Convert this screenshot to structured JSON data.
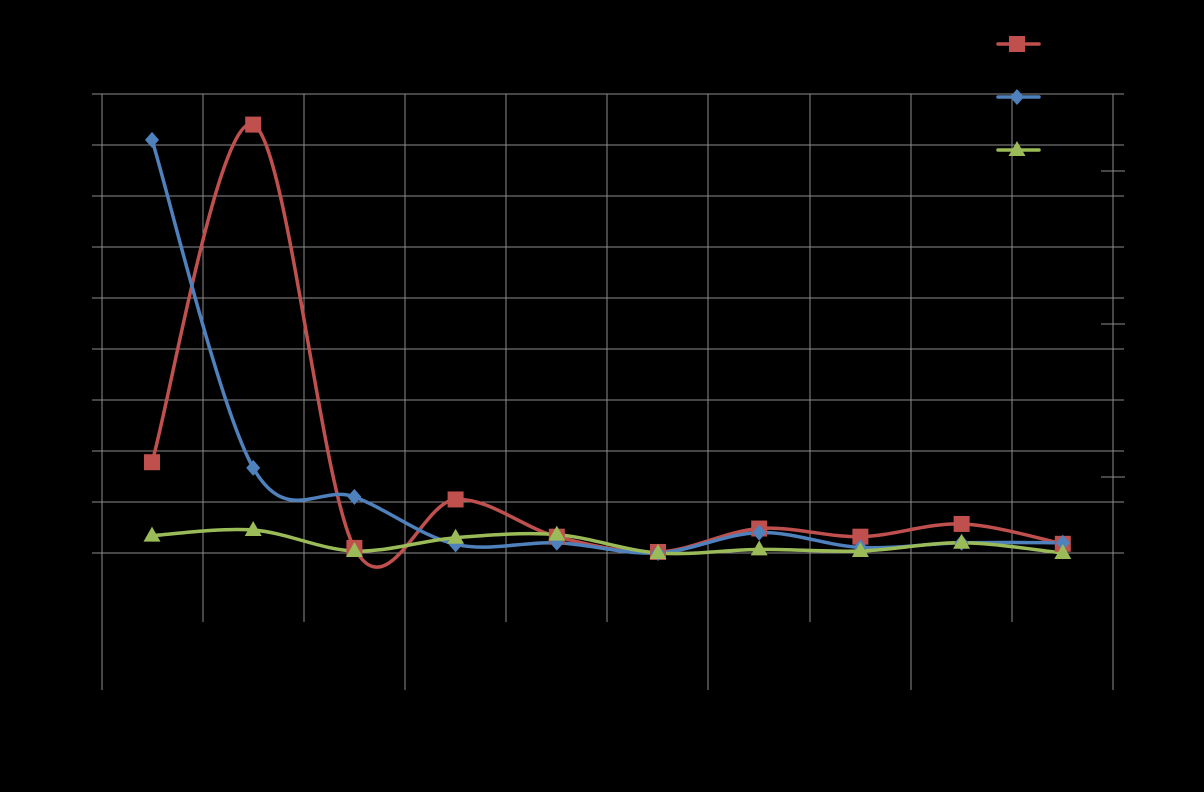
{
  "background": "#000000",
  "chart_data": {
    "type": "line",
    "title": "",
    "xlabel": "",
    "ylabel": "",
    "x": [
      1,
      2,
      3,
      4,
      5,
      6,
      7,
      8,
      9,
      10
    ],
    "ylim": [
      0,
      9
    ],
    "grid": true,
    "smooth": true,
    "legend_position": "top-right",
    "series": [
      {
        "values": [
          1.78,
          8.4,
          0.1,
          1.05,
          0.32,
          0.02,
          0.48,
          0.32,
          0.57,
          0.18
        ],
        "color": "#C0504D",
        "marker": "square"
      },
      {
        "values": [
          8.1,
          1.67,
          1.1,
          0.17,
          0.2,
          0.0,
          0.4,
          0.11,
          0.2,
          0.2
        ],
        "color": "#4F81BD",
        "marker": "diamond"
      },
      {
        "values": [
          0.34,
          0.45,
          0.04,
          0.3,
          0.36,
          0.0,
          0.07,
          0.04,
          0.2,
          0.0
        ],
        "color": "#9BBB59",
        "marker": "triangle"
      }
    ]
  }
}
